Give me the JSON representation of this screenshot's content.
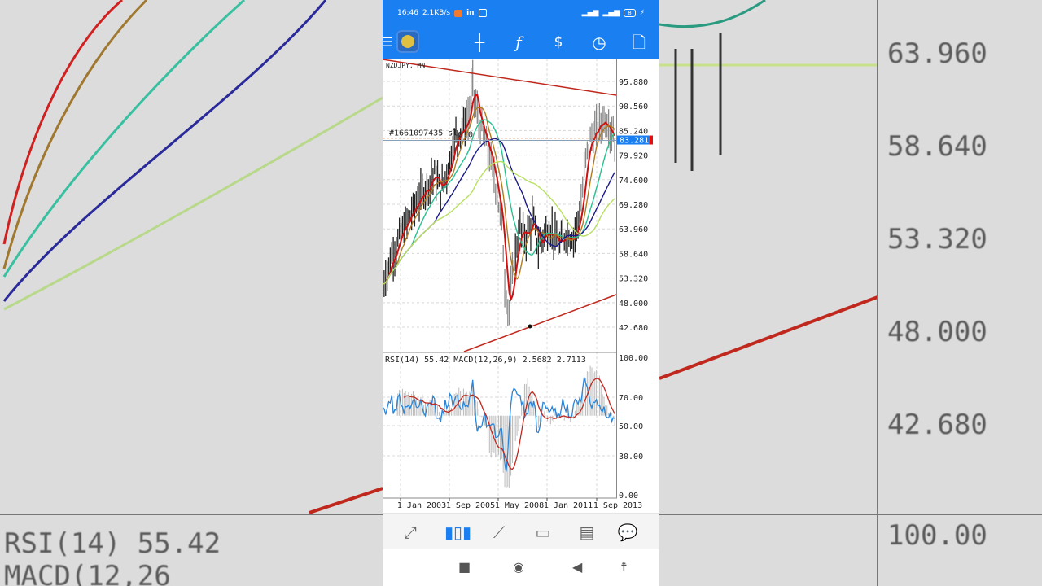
{
  "background": {
    "left_labels": [
      "RSI(14) 55.42 MACD(12,26"
    ],
    "right_labels": [
      "63.960",
      "58.640",
      "53.320",
      "48.000",
      "42.680",
      "100.00"
    ]
  },
  "status_bar": {
    "time": "16:46",
    "speed": "2.1KB/s",
    "battery": "8"
  },
  "toolbar": {
    "icons": [
      "menu-icon",
      "app-logo-icon",
      "crosshair-icon",
      "indicators-icon",
      "trade-icon",
      "timeframe-clock-icon",
      "new-order-icon"
    ],
    "indicators_label": "f"
  },
  "chart": {
    "symbol_label": "NZDJPY, MN",
    "order_label": "#1661097435 sl",
    "order_value": "0.0",
    "current_price": "83.281",
    "price_ticks": [
      "95.880",
      "90.560",
      "85.240",
      "79.920",
      "74.600",
      "69.280",
      "63.960",
      "58.640",
      "53.320",
      "48.000",
      "42.680"
    ],
    "indicator_label": "RSI(14) 55.42 MACD(12,26,9) 2.5682 2.7113",
    "indicator_ticks": [
      "100.00",
      "70.00",
      "50.00",
      "30.00",
      "0.00"
    ],
    "date_ticks": [
      "1 Jan 2003",
      "1 Sep 2005",
      "1 May 2008",
      "1 Jan 2011",
      "1 Sep 2013"
    ],
    "colors": {
      "trendline": "#c0281e",
      "current_price_bg": "#1a7ff0",
      "rsi": "#2b84d6",
      "macd_signal": "#c0281e",
      "ma": [
        "#d01010",
        "#b07a20",
        "#28c090",
        "#1a1a8c",
        "#b8e060"
      ]
    },
    "price_path": [
      [
        2002.1,
        52
      ],
      [
        2002.6,
        58
      ],
      [
        2003.0,
        62
      ],
      [
        2003.5,
        66
      ],
      [
        2004.0,
        70
      ],
      [
        2004.5,
        73
      ],
      [
        2004.9,
        76
      ],
      [
        2005.3,
        72
      ],
      [
        2005.7,
        78
      ],
      [
        2006.1,
        84
      ],
      [
        2006.5,
        86
      ],
      [
        2006.8,
        88
      ],
      [
        2007.0,
        96
      ],
      [
        2007.2,
        90
      ],
      [
        2007.6,
        84
      ],
      [
        2007.9,
        80
      ],
      [
        2008.2,
        75
      ],
      [
        2008.6,
        65
      ],
      [
        2008.8,
        50
      ],
      [
        2009.0,
        46
      ],
      [
        2009.3,
        58
      ],
      [
        2009.6,
        64
      ],
      [
        2009.9,
        62
      ],
      [
        2010.3,
        66
      ],
      [
        2010.6,
        60
      ],
      [
        2010.9,
        63
      ],
      [
        2011.3,
        64
      ],
      [
        2011.7,
        60
      ],
      [
        2012.1,
        63
      ],
      [
        2012.5,
        62
      ],
      [
        2012.9,
        68
      ],
      [
        2013.2,
        80
      ],
      [
        2013.5,
        84
      ],
      [
        2013.9,
        86
      ],
      [
        2014.2,
        88
      ],
      [
        2014.5,
        86
      ],
      [
        2014.8,
        83.28
      ]
    ]
  },
  "bottom_nav": [
    {
      "icon": "quotes-icon",
      "active": false
    },
    {
      "icon": "chart-icon",
      "active": true
    },
    {
      "icon": "trade-icon",
      "active": false
    },
    {
      "icon": "history-inbox-icon",
      "active": false
    },
    {
      "icon": "news-icon",
      "active": false
    },
    {
      "icon": "chat-icon",
      "active": false
    }
  ],
  "system_nav": [
    "recent-apps-icon",
    "home-icon",
    "back-icon",
    "accessibility-icon"
  ]
}
